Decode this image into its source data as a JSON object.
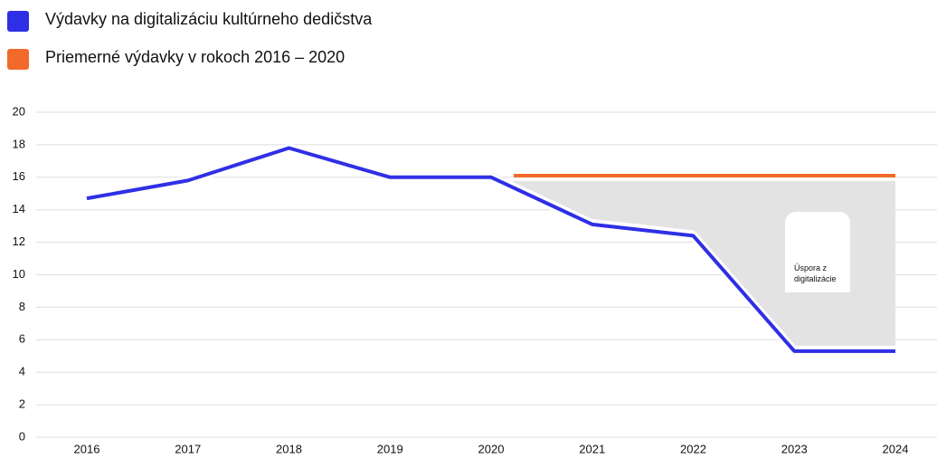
{
  "chart_data": {
    "type": "line",
    "categories": [
      "2016",
      "2017",
      "2018",
      "2019",
      "2020",
      "2021",
      "2022",
      "2023",
      "2024"
    ],
    "series": [
      {
        "name": "Výdavky na digitalizáciu kultúrneho dedičstva",
        "color": "#2f2fe6",
        "values": [
          14.7,
          15.8,
          17.8,
          16,
          16,
          13.1,
          12.4,
          5.3,
          5.3
        ]
      },
      {
        "name": "Priemerné výdavky v rokoch 2016 – 2020",
        "color": "#f26a2a",
        "values": [
          null,
          null,
          null,
          null,
          16.1,
          16.1,
          16.1,
          16.1,
          16.1
        ]
      }
    ],
    "annotation": "Úspora z digitalizácie",
    "ylim": [
      0,
      20
    ],
    "yticks": [
      0,
      2,
      4,
      6,
      8,
      10,
      12,
      14,
      16,
      18,
      20
    ],
    "grid": true,
    "legend": "top-left"
  }
}
